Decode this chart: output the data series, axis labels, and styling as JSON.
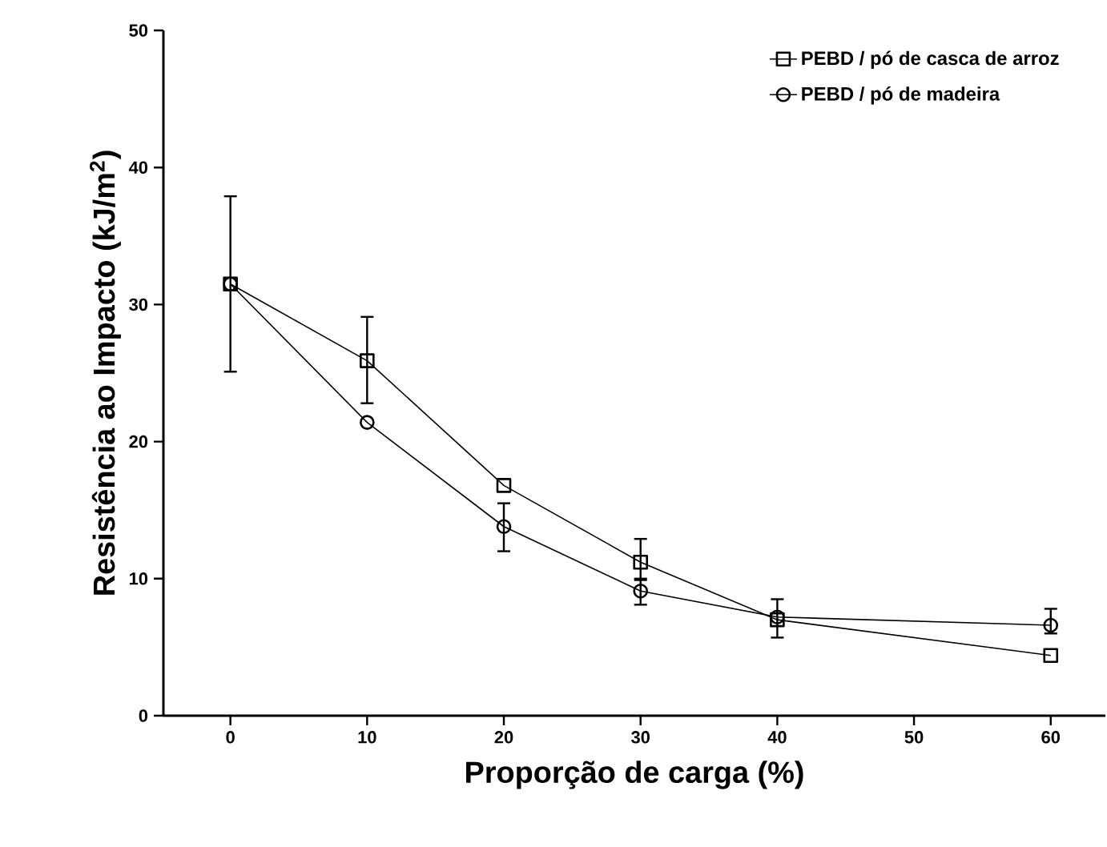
{
  "chart_data": {
    "type": "line",
    "xlabel": "Proporção de carga (%)",
    "ylabel": "Resistência ao Impacto (kJ/m$^{2}$)",
    "x": [
      0,
      10,
      20,
      30,
      40,
      60
    ],
    "xlim": [
      -4.9,
      64
    ],
    "xticks": [
      0,
      10,
      20,
      30,
      40,
      50,
      60
    ],
    "ylim": [
      0,
      50
    ],
    "yticks": [
      0,
      10,
      20,
      30,
      40,
      50
    ],
    "series": [
      {
        "name": "PEBD / pó de casca de arroz",
        "color": "#000000",
        "marker": "square",
        "values": [
          31.5,
          25.9,
          16.8,
          11.2,
          7.0,
          4.4
        ],
        "errors": [
          [
            25.1,
            37.9
          ],
          [
            22.8,
            29.1
          ],
          null,
          [
            9.9,
            12.9
          ],
          [
            5.7,
            8.5
          ],
          null
        ]
      },
      {
        "name": "PEBD / pó de madeira",
        "color": "#000000",
        "marker": "circle",
        "values": [
          31.5,
          21.4,
          13.8,
          9.1,
          7.2,
          6.6
        ],
        "errors": [
          null,
          null,
          [
            12.0,
            15.5
          ],
          [
            8.1,
            10.0
          ],
          null,
          [
            6.0,
            7.8
          ]
        ]
      }
    ],
    "legend": "top right",
    "grid": false
  }
}
